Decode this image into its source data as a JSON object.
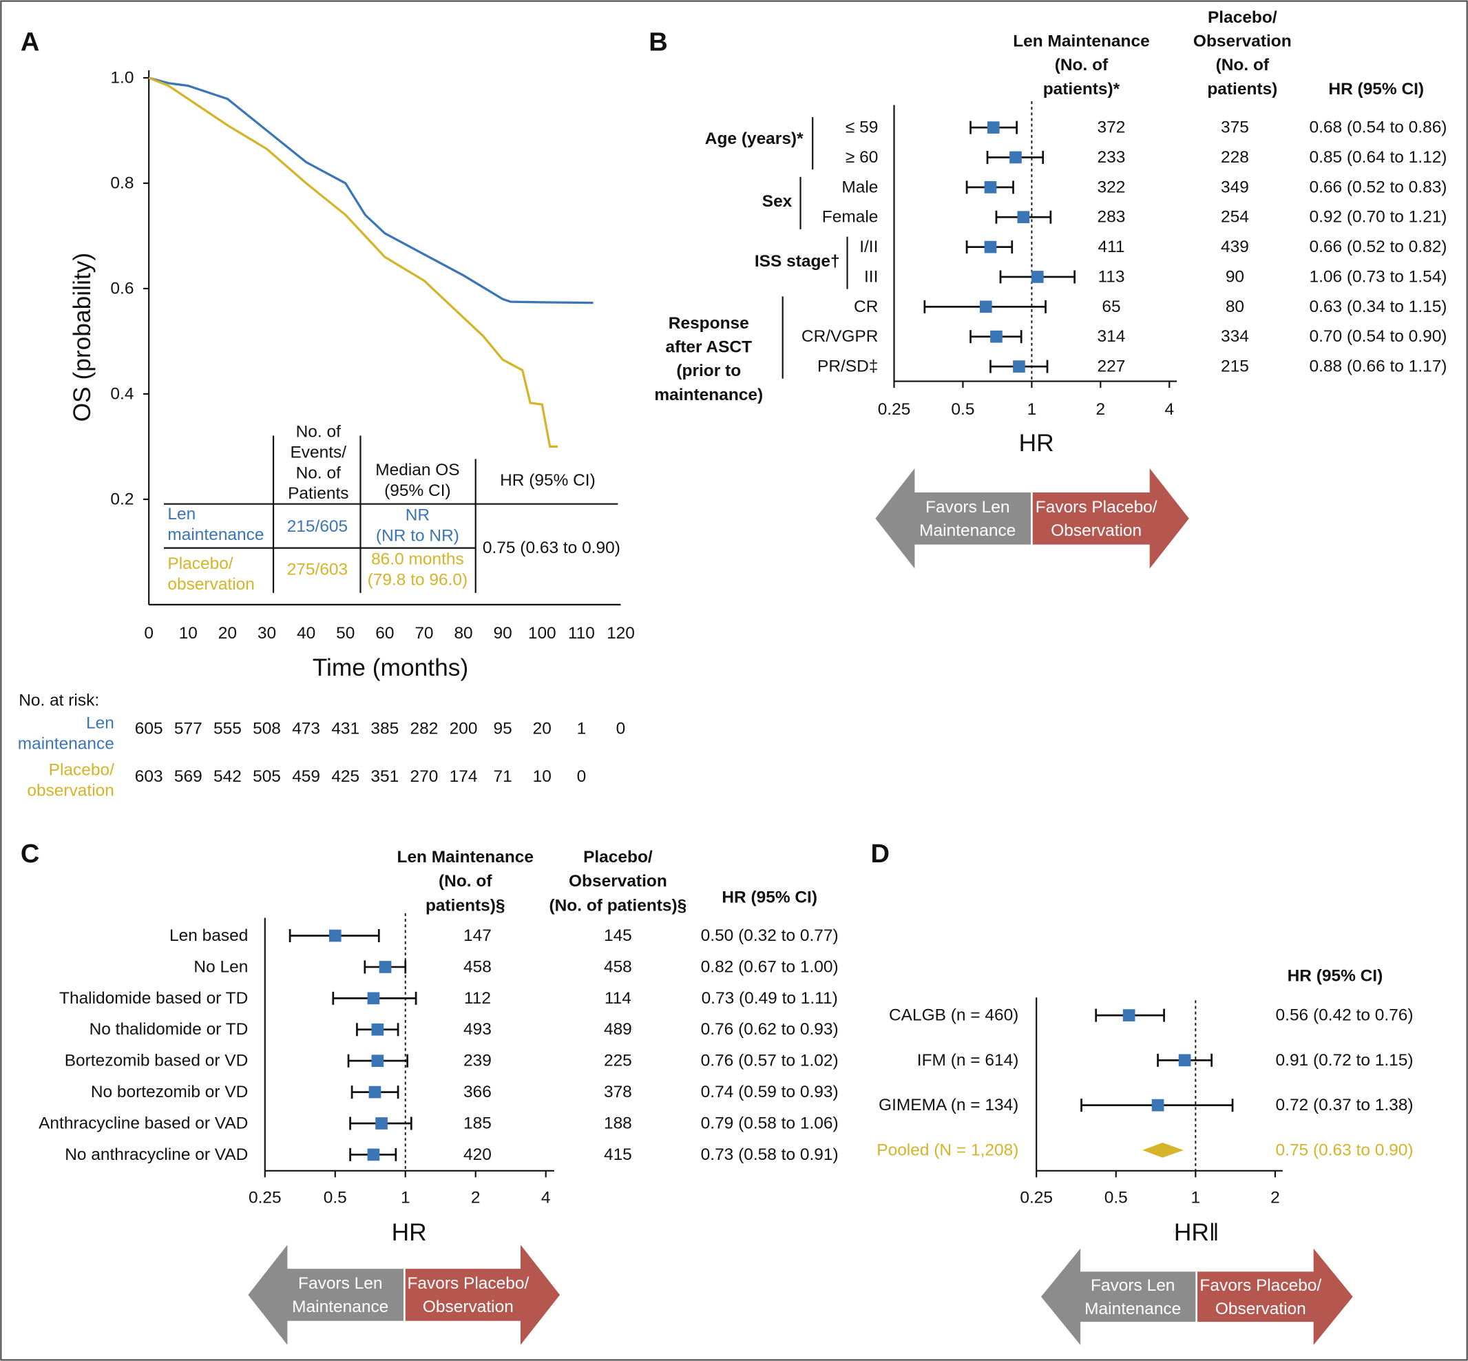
{
  "chart_data": [
    {
      "type": "line",
      "panel": "A",
      "ylabel": "OS (probability)",
      "xlabel": "Time (months)",
      "xlim": [
        0,
        120
      ],
      "xticks": [
        0,
        10,
        20,
        30,
        40,
        50,
        60,
        70,
        80,
        90,
        100,
        110,
        120
      ],
      "ylim": [
        0,
        1
      ],
      "yticks": [
        0.2,
        0.4,
        0.6,
        0.8,
        {
          "value": 1,
          "label": "1.0"
        }
      ],
      "series": [
        {
          "name": [
            "Len",
            "maintenance"
          ],
          "color": "#3a76b6",
          "x": [
            0,
            5,
            10,
            20,
            30,
            40,
            50,
            55,
            60,
            70,
            80,
            90,
            92,
            100,
            113
          ],
          "values": [
            1,
            0.99,
            0.985,
            0.96,
            0.9,
            0.84,
            0.8,
            0.74,
            0.705,
            0.665,
            0.625,
            0.58,
            0.575,
            0.574,
            0.573
          ]
        },
        {
          "name": [
            "Placebo/",
            "observation"
          ],
          "color": "#d5b429",
          "x": [
            0,
            5,
            10,
            20,
            30,
            40,
            50,
            55,
            60,
            70,
            80,
            85,
            90,
            95,
            97,
            100,
            102,
            104
          ],
          "values": [
            1,
            0.985,
            0.96,
            0.91,
            0.865,
            0.8,
            0.74,
            0.7,
            0.66,
            0.615,
            0.545,
            0.51,
            0.465,
            0.445,
            0.383,
            0.38,
            0.3,
            0.3
          ]
        }
      ],
      "table": {
        "columns": [
          [
            "No. of",
            "Events/",
            "No. of",
            "Patients"
          ],
          [
            "Median OS",
            "(95% CI)"
          ],
          [
            "HR (95% CI)"
          ]
        ],
        "rows": [
          [
            "215/605",
            [
              "NR",
              "(NR to NR)"
            ]
          ],
          [
            "275/603",
            [
              "86.0 months",
              "(79.8 to 96.0)"
            ]
          ]
        ],
        "hr": "0.75 (0.63 to 0.90)"
      },
      "at_risk": {
        "label": "No. at risk:",
        "rows": [
          [
            605,
            577,
            555,
            508,
            473,
            431,
            385,
            282,
            200,
            95,
            20,
            1,
            0
          ],
          [
            603,
            569,
            542,
            505,
            459,
            425,
            351,
            270,
            174,
            71,
            10,
            0
          ]
        ]
      }
    },
    {
      "type": "forest",
      "panel": "B",
      "xlabel": "HR",
      "log": true,
      "xlim": [
        0.25,
        4
      ],
      "xticks": [
        0.25,
        0.5,
        1,
        2,
        4
      ],
      "reference_line": 1,
      "color": "#3a76b6",
      "columns": [
        [
          "Len Maintenance",
          "(No. of",
          "patients)*"
        ],
        [
          "Placebo/",
          "Observation",
          "(No. of",
          "patients)"
        ],
        [
          "HR (95% CI)"
        ]
      ],
      "groups": [
        {
          "label": [
            "Age (years)*"
          ],
          "rows": [
            {
              "label": "≤ 59",
              "n_len": 372,
              "n_placebo": 375,
              "value": 0.68,
              "lower": 0.54,
              "upper": 0.86,
              "value_label": "0.68 (0.54 to 0.86)"
            },
            {
              "label": "≥ 60",
              "n_len": 233,
              "n_placebo": 228,
              "value": 0.85,
              "lower": 0.64,
              "upper": 1.12,
              "value_label": "0.85 (0.64 to 1.12)"
            }
          ]
        },
        {
          "label": [
            "Sex"
          ],
          "rows": [
            {
              "label": "Male",
              "n_len": 322,
              "n_placebo": 349,
              "value": 0.66,
              "lower": 0.52,
              "upper": 0.83,
              "value_label": "0.66 (0.52 to 0.83)"
            },
            {
              "label": "Female",
              "n_len": 283,
              "n_placebo": 254,
              "value": 0.92,
              "lower": 0.7,
              "upper": 1.21,
              "value_label": "0.92 (0.70 to 1.21)"
            }
          ]
        },
        {
          "label": [
            "ISS stage†"
          ],
          "rows": [
            {
              "label": "I/II",
              "n_len": 411,
              "n_placebo": 439,
              "value": 0.66,
              "lower": 0.52,
              "upper": 0.82,
              "value_label": "0.66 (0.52 to 0.82)"
            },
            {
              "label": "III",
              "n_len": 113,
              "n_placebo": 90,
              "value": 1.06,
              "lower": 0.73,
              "upper": 1.54,
              "value_label": "1.06 (0.73 to 1.54)"
            }
          ]
        },
        {
          "label": [
            "Response",
            "after ASCT",
            "(prior to",
            "maintenance)"
          ],
          "rows": [
            {
              "label": "CR",
              "n_len": 65,
              "n_placebo": 80,
              "value": 0.63,
              "lower": 0.34,
              "upper": 1.15,
              "value_label": "0.63 (0.34 to 1.15)"
            },
            {
              "label": "CR/VGPR",
              "n_len": 314,
              "n_placebo": 334,
              "value": 0.7,
              "lower": 0.54,
              "upper": 0.9,
              "value_label": "0.70 (0.54 to 0.90)"
            },
            {
              "label": "PR/SD‡",
              "n_len": 227,
              "n_placebo": 215,
              "value": 0.88,
              "lower": 0.66,
              "upper": 1.17,
              "value_label": "0.88 (0.66 to 1.17)"
            }
          ]
        }
      ],
      "favors": [
        [
          "Favors Len",
          "Maintenance"
        ],
        [
          "Favors Placebo/",
          "Observation"
        ]
      ]
    },
    {
      "type": "forest",
      "panel": "C",
      "xlabel": "HR",
      "log": true,
      "xlim": [
        0.25,
        4
      ],
      "xticks": [
        0.25,
        0.5,
        1,
        2,
        4
      ],
      "reference_line": 1,
      "color": "#3a76b6",
      "columns": [
        [
          "Len Maintenance",
          "(No. of",
          "patients)§"
        ],
        [
          "Placebo/",
          "Observation",
          "(No. of patients)§"
        ],
        [
          "HR (95% CI)"
        ]
      ],
      "rows": [
        {
          "label": "Len based",
          "n_len": 147,
          "n_placebo": 145,
          "value": 0.5,
          "lower": 0.32,
          "upper": 0.77,
          "value_label": "0.50 (0.32 to 0.77)"
        },
        {
          "label": "No Len",
          "n_len": 458,
          "n_placebo": 458,
          "value": 0.82,
          "lower": 0.67,
          "upper": 1.0,
          "value_label": "0.82 (0.67 to 1.00)"
        },
        {
          "label": "Thalidomide based or TD",
          "n_len": 112,
          "n_placebo": 114,
          "value": 0.73,
          "lower": 0.49,
          "upper": 1.11,
          "value_label": "0.73 (0.49 to 1.11)"
        },
        {
          "label": "No thalidomide or TD",
          "n_len": 493,
          "n_placebo": 489,
          "value": 0.76,
          "lower": 0.62,
          "upper": 0.93,
          "value_label": "0.76 (0.62 to 0.93)"
        },
        {
          "label": "Bortezomib based or VD",
          "n_len": 239,
          "n_placebo": 225,
          "value": 0.76,
          "lower": 0.57,
          "upper": 1.02,
          "value_label": "0.76 (0.57 to 1.02)"
        },
        {
          "label": "No bortezomib or VD",
          "n_len": 366,
          "n_placebo": 378,
          "value": 0.74,
          "lower": 0.59,
          "upper": 0.93,
          "value_label": "0.74 (0.59 to 0.93)"
        },
        {
          "label": "Anthracycline based or VAD",
          "n_len": 185,
          "n_placebo": 188,
          "value": 0.79,
          "lower": 0.58,
          "upper": 1.06,
          "value_label": "0.79 (0.58 to 1.06)"
        },
        {
          "label": "No anthracycline or VAD",
          "n_len": 420,
          "n_placebo": 415,
          "value": 0.73,
          "lower": 0.58,
          "upper": 0.91,
          "value_label": "0.73 (0.58 to 0.91)"
        }
      ],
      "favors": [
        [
          "Favors Len",
          "Maintenance"
        ],
        [
          "Favors Placebo/",
          "Observation"
        ]
      ]
    },
    {
      "type": "forest",
      "panel": "D",
      "xlabel": "HR‖",
      "log": true,
      "xlim": [
        0.25,
        2
      ],
      "xticks": [
        0.25,
        0.5,
        1,
        2
      ],
      "reference_line": 1,
      "color": "#3a76b6",
      "columns": [
        [
          "HR (95% CI)"
        ]
      ],
      "rows": [
        {
          "label": "CALGB (n = 460)",
          "value": 0.56,
          "lower": 0.42,
          "upper": 0.76,
          "value_label": "0.56 (0.42 to 0.76)"
        },
        {
          "label": "IFM (n = 614)",
          "value": 0.91,
          "lower": 0.72,
          "upper": 1.15,
          "value_label": "0.91 (0.72 to 1.15)"
        },
        {
          "label": "GIMEMA (n = 134)",
          "value": 0.72,
          "lower": 0.37,
          "upper": 1.38,
          "value_label": "0.72 (0.37 to 1.38)"
        },
        {
          "label": "Pooled (N = 1,208)",
          "value": 0.75,
          "lower": 0.63,
          "upper": 0.9,
          "value_label": "0.75 (0.63 to 0.90)",
          "marker": "diamond",
          "color": "#d5b429",
          "text_color": "#d5b429"
        }
      ],
      "favors": [
        [
          "Favors Len",
          "Maintenance"
        ],
        [
          "Favors Placebo/",
          "Observation"
        ]
      ]
    }
  ]
}
